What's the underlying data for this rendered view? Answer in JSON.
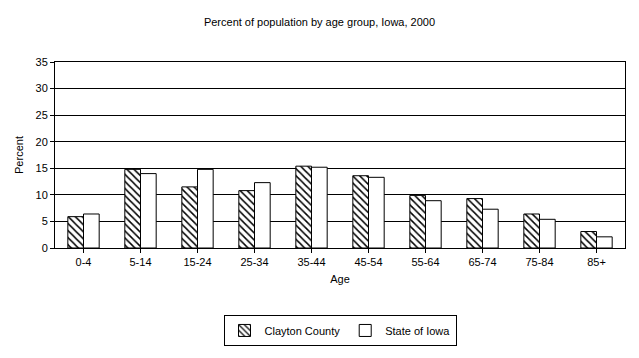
{
  "chart_data": {
    "type": "bar",
    "title": "Percent of population by age group, Iowa, 2000",
    "x_label": "Age",
    "y_label": "Percent",
    "categories": [
      "0-4",
      "5-14",
      "15-24",
      "25-34",
      "35-44",
      "45-54",
      "55-64",
      "65-74",
      "75-84",
      "85+"
    ],
    "series": [
      {
        "name": "Clayton County",
        "color": "#000000",
        "marker": "hatch",
        "values": [
          5.9,
          14.8,
          11.5,
          10.8,
          15.4,
          13.6,
          9.9,
          9.3,
          6.4,
          3.1
        ]
      },
      {
        "name": "State of Iowa",
        "color": "#ffffff",
        "values": [
          6.4,
          14.0,
          14.8,
          12.3,
          15.2,
          13.3,
          8.9,
          7.3,
          5.4,
          2.1
        ]
      }
    ],
    "ylim": [
      0,
      35
    ],
    "yticks": [
      0,
      5,
      10,
      15,
      20,
      25,
      30,
      35
    ],
    "grid": true,
    "legend": "bottom"
  }
}
